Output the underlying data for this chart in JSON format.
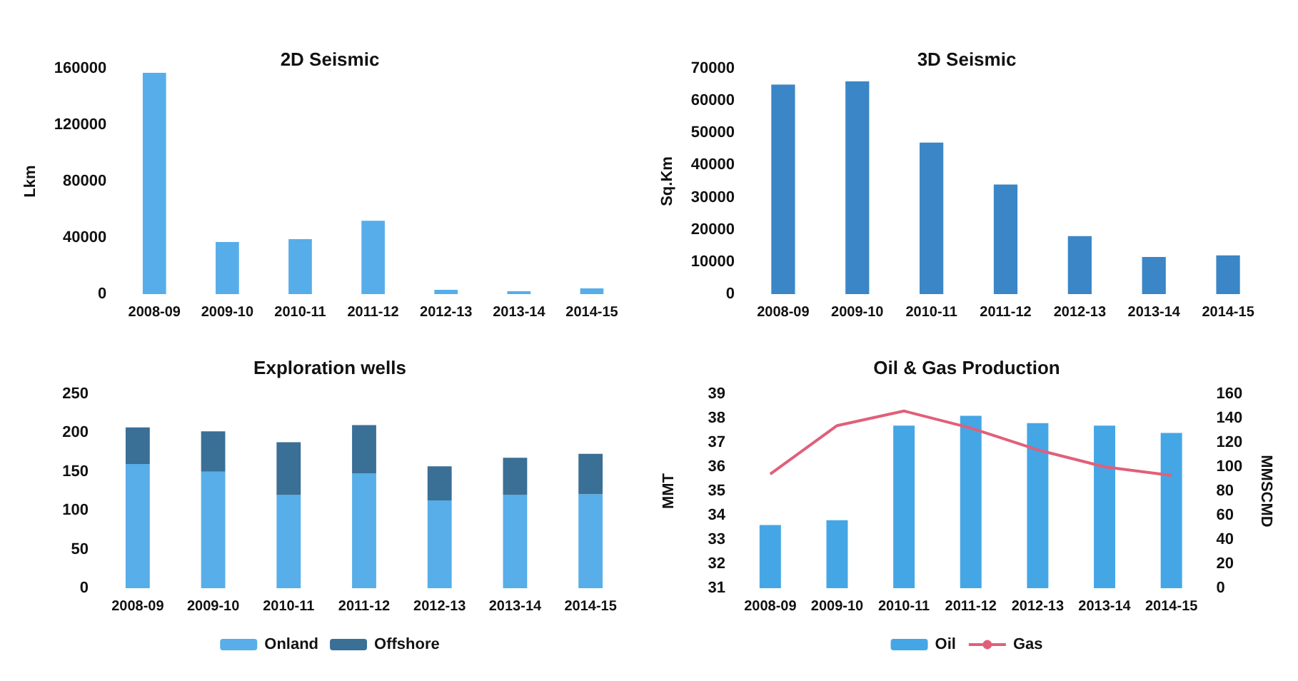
{
  "chart_data": [
    {
      "type": "bar",
      "title": "2D Seismic",
      "ylabel": "Lkm",
      "categories": [
        "2008-09",
        "2009-10",
        "2010-11",
        "2011-12",
        "2012-13",
        "2013-14",
        "2014-15"
      ],
      "series": [
        {
          "color": "#56adea",
          "values": [
            157000,
            37000,
            39000,
            52000,
            3000,
            2000,
            4000
          ]
        }
      ],
      "ylim": [
        0,
        160000
      ],
      "yticks": [
        0,
        40000,
        80000,
        120000,
        160000
      ],
      "grid": false,
      "legend": false
    },
    {
      "type": "bar",
      "title": "3D Seismic",
      "ylabel": "Sq.Km",
      "categories": [
        "2008-09",
        "2009-10",
        "2010-11",
        "2011-12",
        "2012-13",
        "2013-14",
        "2014-15"
      ],
      "series": [
        {
          "color": "#3a86c6",
          "values": [
            65000,
            66000,
            47000,
            34000,
            18000,
            11500,
            12000
          ]
        }
      ],
      "ylim": [
        0,
        70000
      ],
      "yticks": [
        0,
        10000,
        20000,
        30000,
        40000,
        50000,
        60000,
        70000
      ],
      "grid": false,
      "legend": false
    },
    {
      "type": "bar",
      "title": "Exploration wells",
      "stacked": true,
      "categories": [
        "2008-09",
        "2009-10",
        "2010-11",
        "2011-12",
        "2012-13",
        "2013-14",
        "2014-15"
      ],
      "series": [
        {
          "name": "Onland",
          "color": "#57aee8",
          "values": [
            160,
            150,
            120,
            148,
            113,
            120,
            121
          ]
        },
        {
          "name": "Offshore",
          "color": "#3a6f96",
          "values": [
            47,
            52,
            68,
            62,
            44,
            48,
            52
          ]
        }
      ],
      "ylim": [
        0,
        250
      ],
      "yticks": [
        0,
        50,
        100,
        150,
        200,
        250
      ],
      "grid": false,
      "legend": "bottom"
    },
    {
      "type": "bar",
      "title": "Oil & Gas Production",
      "ylabel": "MMT",
      "y2label": "MMSCMD",
      "categories": [
        "2008-09",
        "2009-10",
        "2010-11",
        "2011-12",
        "2012-13",
        "2013-14",
        "2014-15"
      ],
      "series": [
        {
          "name": "Oil",
          "color": "#45a6e6",
          "values": [
            33.6,
            33.8,
            37.7,
            38.1,
            37.8,
            37.7,
            37.4
          ]
        },
        {
          "name": "Gas",
          "type": "line",
          "axis": "y2",
          "color": "#e0607a",
          "values": [
            94,
            134,
            146,
            132,
            114,
            100,
            93
          ]
        }
      ],
      "ylim": [
        31,
        39
      ],
      "yticks": [
        31,
        32,
        33,
        34,
        35,
        36,
        37,
        38,
        39
      ],
      "y2lim": [
        0,
        160
      ],
      "y2ticks": [
        0,
        20,
        40,
        60,
        80,
        100,
        120,
        140,
        160
      ],
      "grid": false,
      "legend": "bottom",
      "marker": "none"
    }
  ]
}
